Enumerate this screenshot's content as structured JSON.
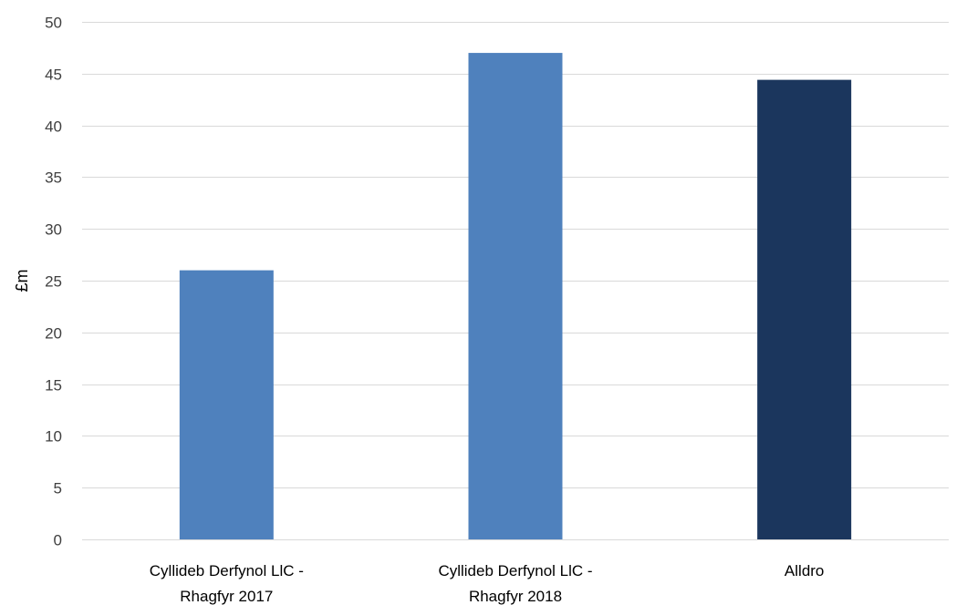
{
  "chart_data": {
    "type": "bar",
    "title": "",
    "xlabel": "",
    "ylabel": "£m",
    "ylim": [
      0,
      50
    ],
    "ytick_step": 5,
    "grid": true,
    "legend": "none",
    "categories": [
      [
        "Cyllideb Derfynol LlC -",
        "Rhagfyr 2017"
      ],
      [
        "Cyllideb Derfynol LlC -",
        "Rhagfyr 2018"
      ],
      [
        "Alldro"
      ]
    ],
    "values": [
      26,
      47,
      44.4
    ],
    "colors": [
      "#4f81bd",
      "#4f81bd",
      "#1b365d"
    ]
  }
}
